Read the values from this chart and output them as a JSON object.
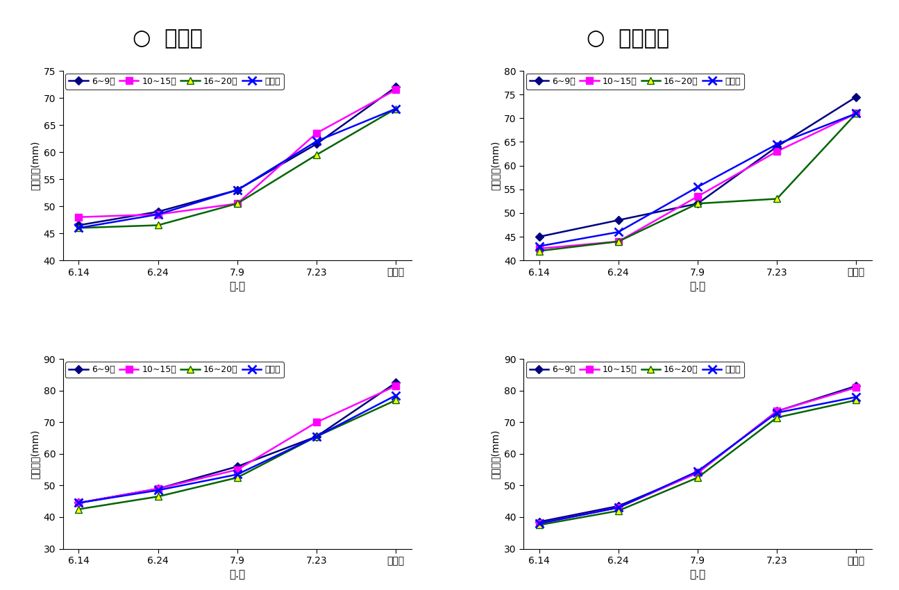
{
  "x_labels": [
    "6.14",
    "6.24",
    "7.9",
    "7.23",
    "수확기"
  ],
  "xlabel": "월.일",
  "title_left": "○  미백도",
  "title_right": "○  오도로끼",
  "legend_labels": [
    "6~9엽",
    "10~15엽",
    "16~20엽",
    "무처리"
  ],
  "colors": [
    "#000080",
    "#ff00ff",
    "#006400",
    "#0000ff"
  ],
  "markers": [
    "D",
    "s",
    "^",
    "x"
  ],
  "top_left": {
    "ylabel": "과실종경(mm)",
    "ylim": [
      40,
      75
    ],
    "yticks": [
      40,
      45,
      50,
      55,
      60,
      65,
      70,
      75
    ],
    "series": [
      [
        46.5,
        49.0,
        53.0,
        61.5,
        72.0
      ],
      [
        48.0,
        48.5,
        50.5,
        63.5,
        71.5
      ],
      [
        46.0,
        46.5,
        50.5,
        59.5,
        68.0
      ],
      [
        46.0,
        48.5,
        53.0,
        62.0,
        68.0
      ]
    ]
  },
  "top_right": {
    "ylabel": "종경길이(mm)",
    "ylim": [
      40,
      80
    ],
    "yticks": [
      40,
      45,
      50,
      55,
      60,
      65,
      70,
      75,
      80
    ],
    "series": [
      [
        45.0,
        48.5,
        52.0,
        64.0,
        74.5
      ],
      [
        42.5,
        44.0,
        53.5,
        63.0,
        71.0
      ],
      [
        42.0,
        44.0,
        52.0,
        53.0,
        71.0
      ],
      [
        43.0,
        46.0,
        55.5,
        64.5,
        71.0
      ]
    ]
  },
  "bottom_left": {
    "ylabel": "과실횚경(mm)",
    "ylim": [
      30,
      90
    ],
    "yticks": [
      30,
      40,
      50,
      60,
      70,
      80,
      90
    ],
    "series": [
      [
        44.5,
        49.0,
        56.0,
        65.5,
        82.5
      ],
      [
        44.5,
        49.0,
        55.0,
        70.0,
        81.5
      ],
      [
        42.5,
        46.5,
        52.5,
        65.5,
        77.0
      ],
      [
        44.5,
        48.5,
        53.5,
        65.5,
        78.5
      ]
    ]
  },
  "bottom_right": {
    "ylabel": "과실횚경(mm)",
    "ylim": [
      30,
      90
    ],
    "yticks": [
      30,
      40,
      50,
      60,
      70,
      80,
      90
    ],
    "series": [
      [
        38.5,
        43.5,
        54.0,
        73.5,
        81.5
      ],
      [
        38.0,
        43.0,
        54.0,
        73.5,
        81.0
      ],
      [
        37.5,
        42.0,
        52.5,
        71.5,
        77.0
      ],
      [
        38.0,
        43.0,
        54.5,
        73.0,
        78.0
      ]
    ]
  }
}
